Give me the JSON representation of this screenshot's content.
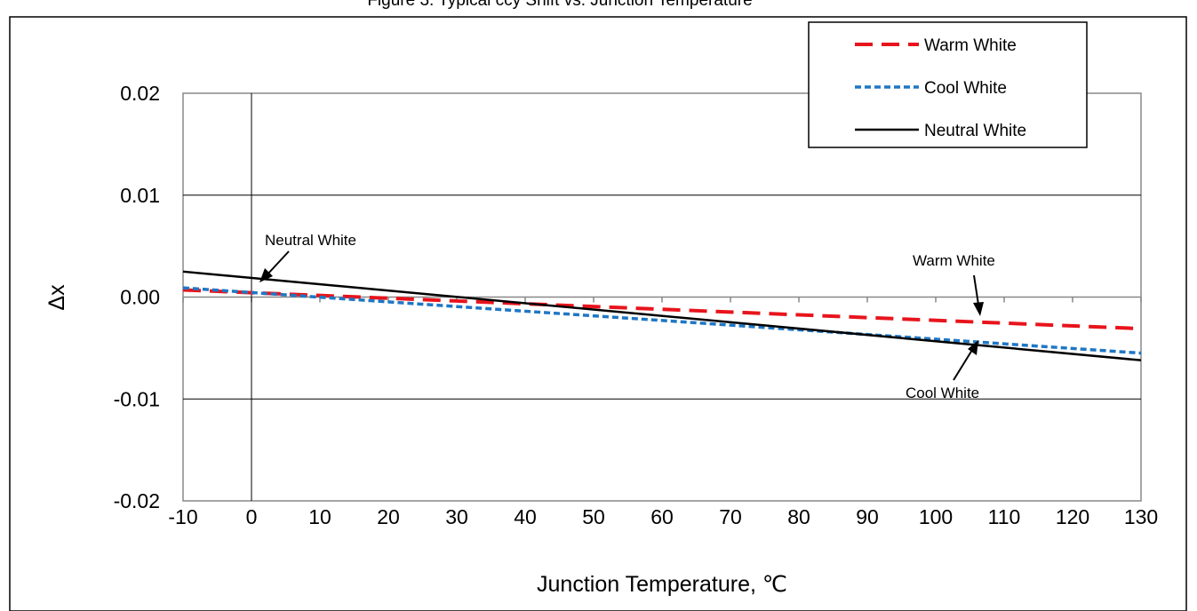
{
  "chart_data": {
    "type": "line",
    "title": "Figure 3. Typical ccy Shift vs. Junction Temperature",
    "xlabel": "Junction Temperature, ℃",
    "ylabel": "Δx",
    "xlim": [
      -10,
      130
    ],
    "ylim": [
      -0.02,
      0.02
    ],
    "x_ticks": [
      "-10",
      "0",
      "10",
      "20",
      "30",
      "40",
      "50",
      "60",
      "70",
      "80",
      "90",
      "100",
      "110",
      "120",
      "130"
    ],
    "y_ticks": [
      "0.02",
      "0.01",
      "0.00",
      "-0.01",
      "-0.02"
    ],
    "y_tick_values": [
      0.02,
      0.01,
      0.0,
      -0.01,
      -0.02
    ],
    "grid": true,
    "x": [
      -10,
      130
    ],
    "series": [
      {
        "name": "Warm White",
        "color": "#e8141c",
        "dash": "long-dash",
        "values": [
          0.0007,
          -0.0031
        ]
      },
      {
        "name": "Cool White",
        "color": "#1f77c4",
        "dash": "short-dash",
        "values": [
          0.0009,
          -0.0055
        ]
      },
      {
        "name": "Neutral White",
        "color": "#000000",
        "dash": "solid",
        "values": [
          0.0025,
          -0.0062
        ]
      }
    ],
    "legend": {
      "position": "top-right"
    },
    "annotations": [
      {
        "text": "Neutral White",
        "x": 1,
        "y": 0.0018
      },
      {
        "text": "Warm White",
        "x": 106,
        "y": -0.0018
      },
      {
        "text": "Cool White",
        "x": 108,
        "y": -0.0038
      }
    ]
  }
}
